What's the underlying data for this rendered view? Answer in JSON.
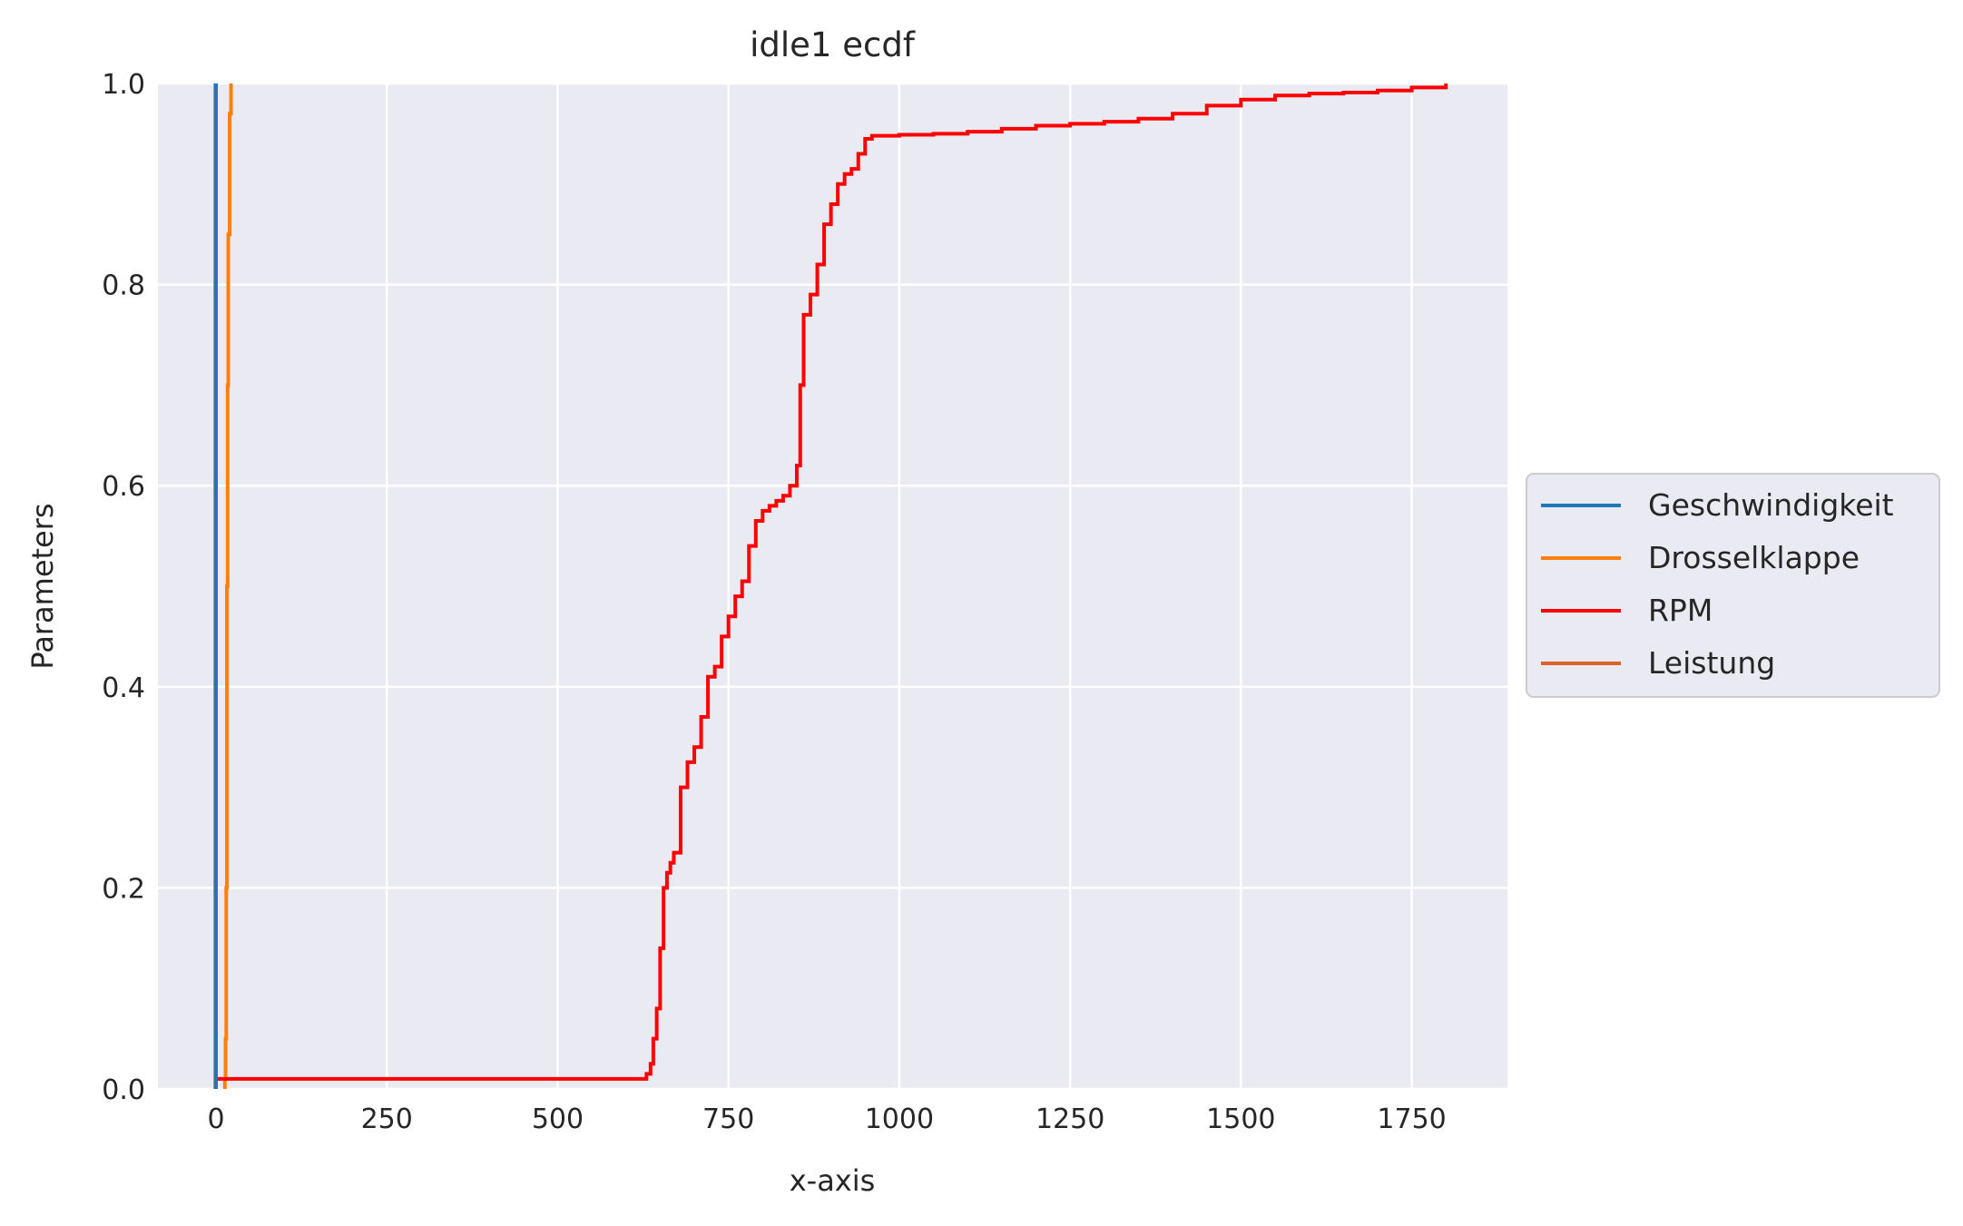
{
  "chart_data": {
    "type": "line",
    "title": "idle1 ecdf",
    "xlabel": "x-axis",
    "ylabel": "Parameters",
    "xlim": [
      -85,
      1890
    ],
    "ylim": [
      0,
      1
    ],
    "x_ticks": [
      0,
      250,
      500,
      750,
      1000,
      1250,
      1500,
      1750
    ],
    "y_ticks": [
      0.0,
      0.2,
      0.4,
      0.6,
      0.8,
      1.0
    ],
    "x_tick_labels": [
      "0",
      "250",
      "500",
      "750",
      "1000",
      "1250",
      "1500",
      "1750"
    ],
    "y_tick_labels": [
      "0.0",
      "0.2",
      "0.4",
      "0.6",
      "0.8",
      "1.0"
    ],
    "grid": true,
    "legend_placement": "right-outside",
    "series": [
      {
        "name": "Geschwindigkeit",
        "color": "#1f77b4",
        "x": [
          0,
          0
        ],
        "y": [
          0.0,
          1.0
        ]
      },
      {
        "name": "Drosselklappe",
        "color": "#ff7f0e",
        "x": [
          13,
          13,
          14,
          15,
          16,
          17,
          18,
          20,
          22
        ],
        "y": [
          0.0,
          0.01,
          0.05,
          0.2,
          0.5,
          0.7,
          0.85,
          0.97,
          1.0
        ]
      },
      {
        "name": "RPM",
        "color": "#ff0000",
        "x": [
          1,
          620,
          630,
          636,
          640,
          645,
          650,
          655,
          660,
          665,
          670,
          680,
          690,
          700,
          710,
          720,
          730,
          740,
          750,
          760,
          770,
          780,
          790,
          800,
          810,
          820,
          830,
          840,
          850,
          855,
          860,
          870,
          880,
          890,
          900,
          910,
          920,
          930,
          940,
          950,
          960,
          1000,
          1050,
          1100,
          1150,
          1200,
          1250,
          1300,
          1350,
          1400,
          1450,
          1500,
          1550,
          1600,
          1650,
          1700,
          1750,
          1800
        ],
        "y": [
          0.01,
          0.01,
          0.015,
          0.025,
          0.05,
          0.08,
          0.14,
          0.2,
          0.215,
          0.225,
          0.235,
          0.3,
          0.325,
          0.34,
          0.37,
          0.41,
          0.42,
          0.45,
          0.47,
          0.49,
          0.505,
          0.54,
          0.565,
          0.575,
          0.58,
          0.585,
          0.59,
          0.6,
          0.62,
          0.7,
          0.77,
          0.79,
          0.82,
          0.86,
          0.88,
          0.9,
          0.91,
          0.915,
          0.93,
          0.945,
          0.948,
          0.949,
          0.95,
          0.952,
          0.955,
          0.958,
          0.96,
          0.962,
          0.965,
          0.97,
          0.978,
          0.984,
          0.988,
          0.99,
          0.991,
          0.993,
          0.996,
          1.0
        ]
      },
      {
        "name": "Leistung",
        "color": "#d9622b",
        "x": [
          -1,
          -1
        ],
        "y": [
          0.0,
          1.0
        ]
      }
    ]
  }
}
